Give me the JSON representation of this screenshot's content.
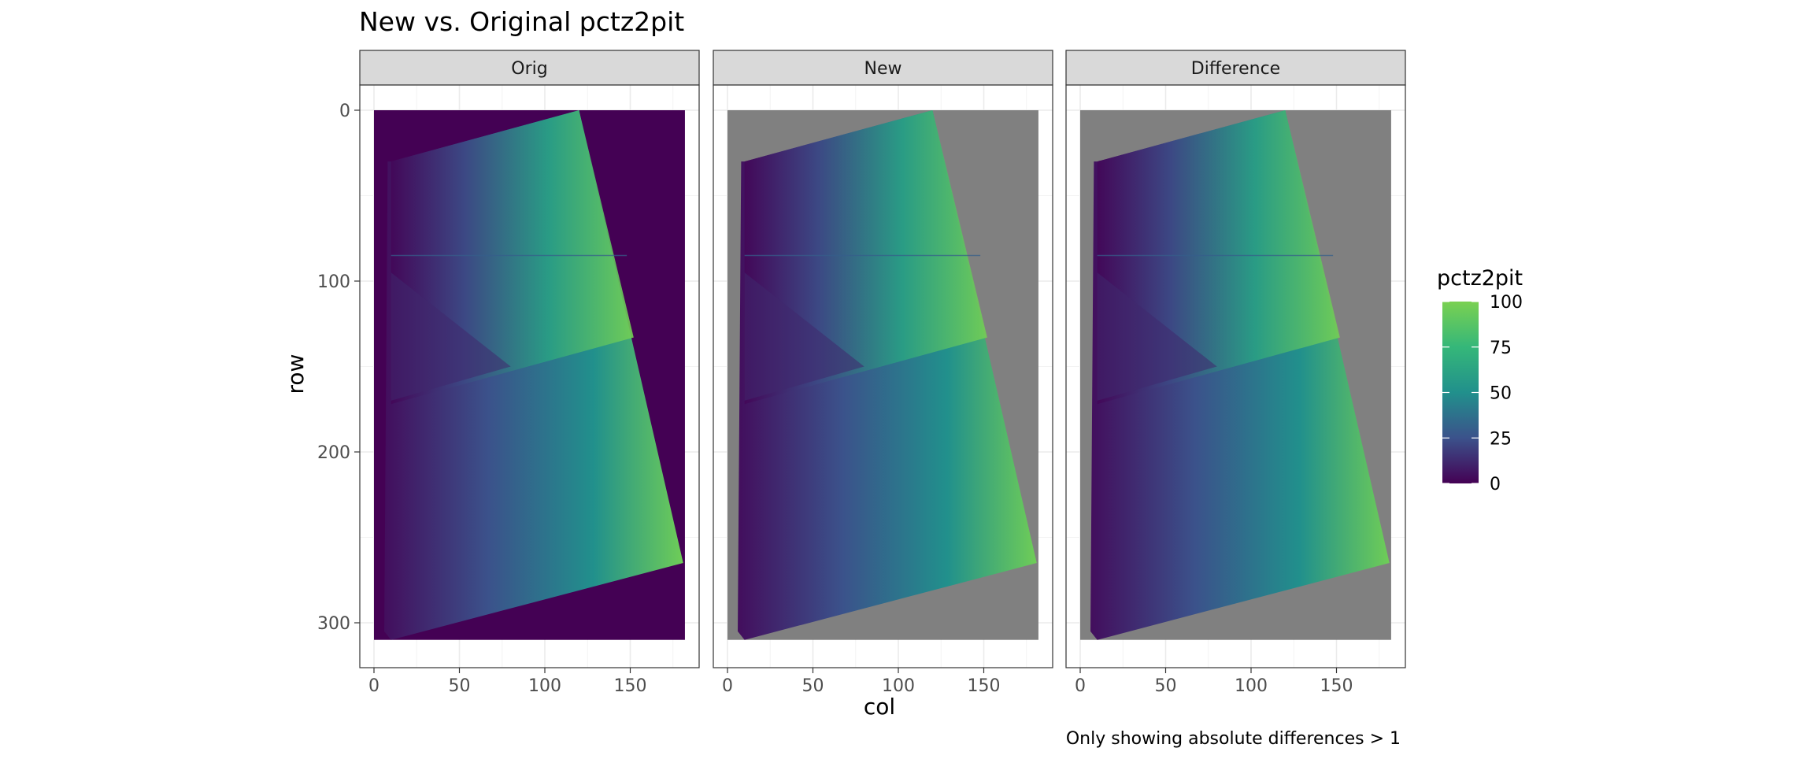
{
  "chart_data": {
    "type": "heatmap",
    "title": "New vs. Original pctz2pit",
    "caption": "Only showing absolute differences > 1",
    "xlabel": "col",
    "ylabel": "row",
    "xlim": [
      0,
      182
    ],
    "ylim": [
      0,
      310
    ],
    "y_reversed": true,
    "x_ticks": [
      0,
      50,
      100,
      150
    ],
    "y_ticks": [
      0,
      100,
      200,
      300
    ],
    "grid": true,
    "panels": [
      {
        "label": "Orig",
        "na_fill": "#440154"
      },
      {
        "label": "New",
        "na_fill": "#808080"
      },
      {
        "label": "Difference",
        "na_fill": "#808080"
      }
    ],
    "legend": {
      "title": "pctz2pit",
      "position": "right",
      "ticks": [
        0,
        25,
        50,
        75,
        100
      ],
      "range": [
        0,
        100
      ],
      "palette": "viridis",
      "colors": [
        "#440154",
        "#3b528b",
        "#21908c",
        "#35b779",
        "#7ad151"
      ]
    }
  }
}
